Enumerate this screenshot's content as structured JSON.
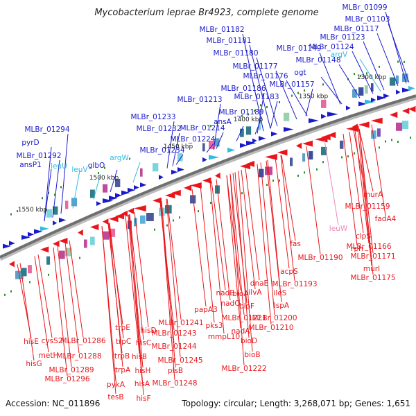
{
  "title": "Mycobacterium leprae Br4923, complete genome",
  "accession": "Accession: NC_011896",
  "summary": "Topology: circular; Length: 3,268,071 bp; Genes: 1,651",
  "colors": {
    "forward_gene": "#1a1acc",
    "reverse_gene": "#e8161b",
    "rna_gene": "#33bbdd",
    "pseudo_label": "#ee88bb",
    "backbone": "#777777",
    "feature_dot": "#2a8f2a"
  },
  "ticks": [
    "1300 kbp",
    "1350 kbp",
    "1400 kbp",
    "1450 kbp",
    "1500 kbp",
    "1550 kbp"
  ],
  "labels_forward": [
    "MLBr_01099",
    "MLBr_01103",
    "MLBr_01117",
    "MLBr_01123",
    "MLBr_01124",
    "MLBr_01182",
    "MLBr_01181",
    "MLBr_01180",
    "MLBr_01149",
    "MLBr_01148",
    "ogt",
    "MLBr_01177",
    "MLBr_01176",
    "MLBr_01186",
    "MLBr_01183",
    "MLBr_01157",
    "MLBr_01213",
    "MLBr_01189",
    "ansA",
    "MLBr_01233",
    "MLBr_01232",
    "MLBr_01214",
    "MLBr_01224",
    "MLBr_01234",
    "glbO",
    "MLBr_01294",
    "pyrD",
    "MLBr_01292",
    "ansP1"
  ],
  "labels_rna": [
    "argV",
    "leuU",
    "leuV",
    "argW"
  ],
  "labels_reverse": [
    "murA",
    "MLBr_01159",
    "fadA4",
    "clpS",
    "rph",
    "MLBr_01166",
    "MLBr_01171",
    "murI",
    "MLBr_01175",
    "fas",
    "MLBr_01190",
    "acpS",
    "MLBr_01193",
    "ileS",
    "dnaE",
    "ilvA",
    "lspA",
    "MLBr_01200",
    "nadB",
    "bioA",
    "nadC",
    "bioF",
    "MLBr_01221",
    "MLBr_01210",
    "nadA",
    "bioD",
    "bioB",
    "MLBr_01222",
    "papA3",
    "pks3",
    "mmpL10",
    "MLBr_01241",
    "MLBr_01243",
    "MLBr_01244",
    "MLBr_01245",
    "plsB",
    "MLBr_01248",
    "hisD",
    "hisC",
    "hisB",
    "hisH",
    "hisA",
    "hisF",
    "trpE",
    "trpC",
    "trpB",
    "trpA",
    "pykA",
    "tesB",
    "MLBr_01286",
    "MLBr_01288",
    "MLBr_01289",
    "MLBr_01296",
    "cysS2",
    "metH",
    "hisE",
    "hisG"
  ],
  "labels_pseudo": [
    "leuW"
  ]
}
